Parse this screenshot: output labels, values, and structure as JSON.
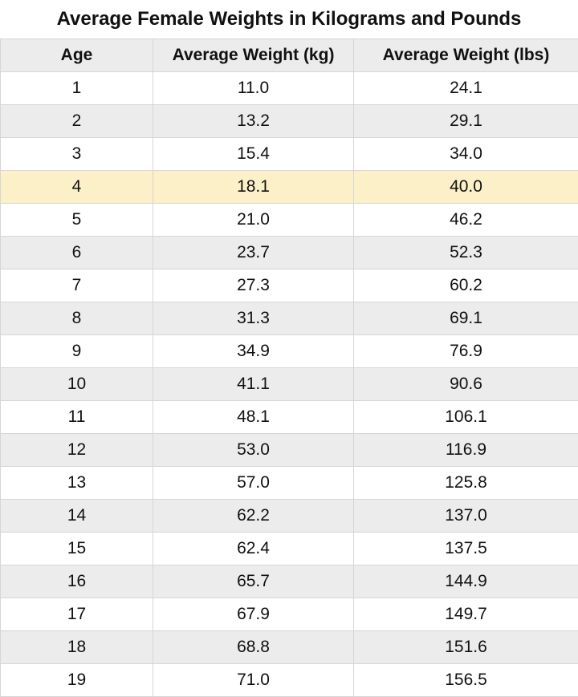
{
  "table": {
    "title": "Average Female Weights in Kilograms and Pounds",
    "header": [
      "Age",
      "Average Weight (kg)",
      "Average Weight (lbs)"
    ],
    "rows": [
      [
        "1",
        "11.0",
        "24.1"
      ],
      [
        "2",
        "13.2",
        "29.1"
      ],
      [
        "3",
        "15.4",
        "34.0"
      ],
      [
        "4",
        "18.1",
        "40.0"
      ],
      [
        "5",
        "21.0",
        "46.2"
      ],
      [
        "6",
        "23.7",
        "52.3"
      ],
      [
        "7",
        "27.3",
        "60.2"
      ],
      [
        "8",
        "31.3",
        "69.1"
      ],
      [
        "9",
        "34.9",
        "76.9"
      ],
      [
        "10",
        "41.1",
        "90.6"
      ],
      [
        "11",
        "48.1",
        "106.1"
      ],
      [
        "12",
        "53.0",
        "116.9"
      ],
      [
        "13",
        "57.0",
        "125.8"
      ],
      [
        "14",
        "62.2",
        "137.0"
      ],
      [
        "15",
        "62.4",
        "137.5"
      ],
      [
        "16",
        "65.7",
        "144.9"
      ],
      [
        "17",
        "67.9",
        "149.7"
      ],
      [
        "18",
        "68.8",
        "151.6"
      ],
      [
        "19",
        "71.0",
        "156.5"
      ]
    ]
  }
}
